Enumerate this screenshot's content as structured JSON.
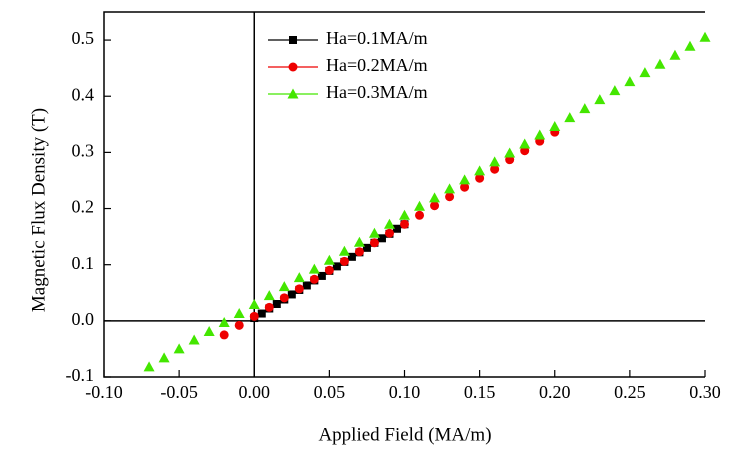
{
  "chart_data": {
    "type": "scatter",
    "xlabel": "Applied Field (MA/m)",
    "ylabel": "Magnetic Flux Density (T)",
    "xlim": [
      -0.1,
      0.3
    ],
    "ylim": [
      -0.1,
      0.55
    ],
    "xticks": [
      {
        "value": -0.1,
        "label": "-0.10"
      },
      -0.05,
      {
        "value": 0,
        "label": "0.00"
      },
      0.05,
      {
        "value": 0.1,
        "label": "0.10"
      },
      0.15,
      {
        "value": 0.2,
        "label": "0.20"
      },
      0.25,
      {
        "value": 0.3,
        "label": "0.30"
      }
    ],
    "yticks": [
      -0.1,
      {
        "value": 0,
        "label": "0.0"
      },
      0.1,
      0.2,
      0.3,
      0.4,
      0.5
    ],
    "legend": "upper left",
    "series": [
      {
        "name": "Ha=0.1MA/m",
        "color": "#000000",
        "marker": "square",
        "x": [
          0,
          0.005,
          0.01,
          0.015,
          0.02,
          0.025,
          0.03,
          0.035,
          0.04,
          0.045,
          0.05,
          0.055,
          0.06,
          0.065,
          0.07,
          0.075,
          0.08,
          0.085,
          0.09,
          0.095,
          0.1
        ],
        "values": [
          0.005,
          0.013,
          0.022,
          0.03,
          0.038,
          0.047,
          0.055,
          0.063,
          0.072,
          0.08,
          0.089,
          0.097,
          0.105,
          0.114,
          0.122,
          0.13,
          0.139,
          0.147,
          0.155,
          0.164,
          0.172
        ]
      },
      {
        "name": "Ha=0.2MA/m",
        "color": "#ee0000",
        "marker": "circle",
        "x": [
          -0.02,
          -0.01,
          0,
          0.01,
          0.02,
          0.03,
          0.04,
          0.05,
          0.06,
          0.07,
          0.08,
          0.09,
          0.1,
          0.11,
          0.12,
          0.13,
          0.14,
          0.15,
          0.16,
          0.17,
          0.18,
          0.19,
          0.2
        ],
        "values": [
          -0.025,
          -0.008,
          0.008,
          0.024,
          0.041,
          0.057,
          0.074,
          0.09,
          0.106,
          0.123,
          0.139,
          0.156,
          0.172,
          0.188,
          0.205,
          0.221,
          0.238,
          0.254,
          0.27,
          0.287,
          0.303,
          0.32,
          0.336
        ]
      },
      {
        "name": "Ha=0.3MA/m",
        "color": "#44e600",
        "marker": "triangle",
        "x": [
          -0.07,
          -0.06,
          -0.05,
          -0.04,
          -0.03,
          -0.02,
          -0.01,
          0,
          0.01,
          0.02,
          0.03,
          0.04,
          0.05,
          0.06,
          0.07,
          0.08,
          0.09,
          0.1,
          0.11,
          0.12,
          0.13,
          0.14,
          0.15,
          0.16,
          0.17,
          0.18,
          0.19,
          0.2,
          0.21,
          0.22,
          0.23,
          0.24,
          0.25,
          0.26,
          0.27,
          0.28,
          0.29,
          0.3
        ],
        "values": [
          -0.082,
          -0.066,
          -0.05,
          -0.034,
          -0.019,
          -0.003,
          0.013,
          0.029,
          0.045,
          0.061,
          0.077,
          0.092,
          0.108,
          0.124,
          0.14,
          0.156,
          0.172,
          0.188,
          0.204,
          0.219,
          0.235,
          0.251,
          0.267,
          0.283,
          0.299,
          0.315,
          0.331,
          0.346,
          0.362,
          0.378,
          0.394,
          0.41,
          0.426,
          0.442,
          0.457,
          0.473,
          0.489,
          0.505
        ]
      }
    ]
  }
}
